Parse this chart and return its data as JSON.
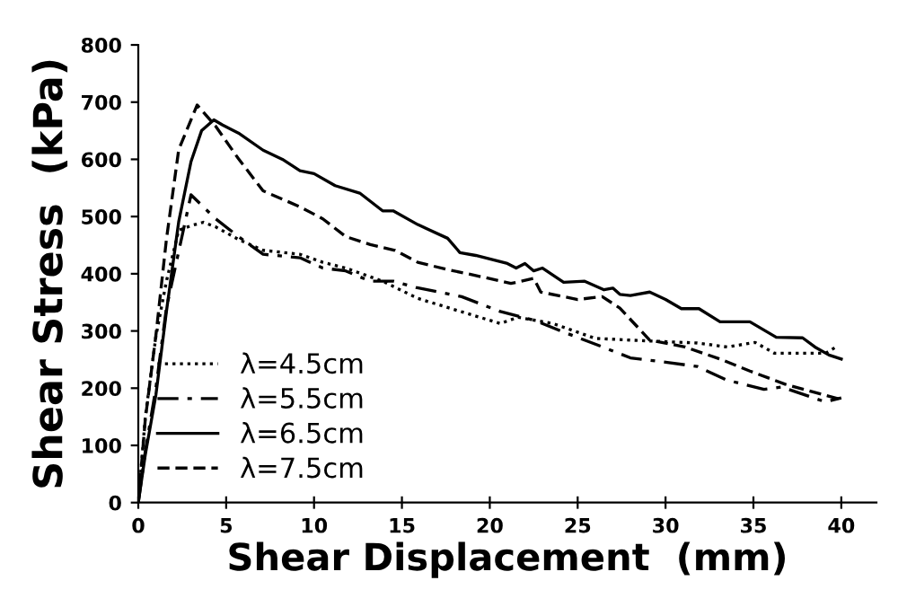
{
  "chart_data": {
    "type": "line",
    "xlabel": "Shear Displacement  (mm)",
    "ylabel": "Shear Stress  (kPa)",
    "xlim": [
      0,
      42
    ],
    "xticks": [
      0,
      5,
      10,
      15,
      20,
      25,
      30,
      35,
      40
    ],
    "ylim": [
      0,
      800
    ],
    "yticks": [
      0,
      100,
      200,
      300,
      400,
      500,
      600,
      700,
      800
    ],
    "grid": false,
    "legend": "lower left",
    "marker": "none",
    "series": [
      {
        "name": "λ=4.5cm",
        "color": "#000000",
        "line_style": "dotted",
        "x": [
          0,
          0.4,
          1,
          1.6,
          2.3,
          3,
          3.7,
          4.4,
          5.7,
          7.1,
          9.2,
          10.5,
          11.8,
          13.9,
          15.9,
          17.6,
          20.6,
          21.6,
          23.6,
          26,
          29.4,
          31.8,
          33.5,
          35.1,
          36.2,
          39.1,
          39.7
        ],
        "values": [
          0,
          150,
          290,
          387,
          476,
          484,
          490,
          482,
          460,
          441,
          434,
          420,
          410,
          387,
          357,
          341,
          313,
          324,
          313,
          287,
          282,
          279,
          272,
          280,
          261,
          261,
          272
        ]
      },
      {
        "name": "λ=5.5cm",
        "color": "#000000",
        "line_style": "dashdot",
        "x": [
          0,
          0.4,
          1,
          1.6,
          2.3,
          3,
          4.4,
          5.7,
          7.1,
          9.2,
          10.5,
          11.8,
          13.2,
          14.5,
          15.8,
          18.4,
          20.6,
          22.5,
          24.2,
          26,
          28,
          30.1,
          31.8,
          33.5,
          35.6,
          36.6,
          39.1,
          40
        ],
        "values": [
          0,
          90,
          200,
          340,
          439,
          538,
          496,
          465,
          434,
          428,
          410,
          405,
          387,
          387,
          376,
          360,
          334,
          319,
          298,
          277,
          253,
          245,
          238,
          214,
          198,
          202,
          176,
          183
        ]
      },
      {
        "name": "λ=6.5cm",
        "color": "#000000",
        "line_style": "solid",
        "x": [
          0,
          0.4,
          1,
          1.6,
          2.3,
          3,
          3.6,
          4.3,
          4.8,
          5.7,
          7.1,
          8.2,
          9.2,
          10,
          11.2,
          12.6,
          13.9,
          14.5,
          15.9,
          17.6,
          18.3,
          19.2,
          20,
          21,
          21.5,
          22,
          22.5,
          23,
          24.2,
          25.4,
          26.5,
          27,
          27.4,
          28,
          29.1,
          30,
          30.9,
          31.9,
          33.1,
          34.8,
          36.3,
          37.8,
          38.5,
          39.3,
          40
        ],
        "values": [
          0,
          84,
          188,
          334,
          491,
          596,
          650,
          669,
          660,
          646,
          616,
          600,
          580,
          575,
          554,
          541,
          510,
          510,
          486,
          462,
          437,
          432,
          426,
          418,
          410,
          418,
          405,
          410,
          385,
          387,
          372,
          375,
          364,
          362,
          368,
          355,
          339,
          339,
          316,
          316,
          289,
          288,
          272,
          258,
          251
        ]
      },
      {
        "name": "λ=7.5cm",
        "color": "#000000",
        "line_style": "dashed",
        "x": [
          0,
          0.4,
          1,
          1.6,
          2.3,
          3.35,
          4.4,
          5.7,
          7.1,
          9.2,
          10.5,
          11.8,
          13.2,
          14.6,
          15.9,
          17.5,
          19.2,
          21.2,
          22.5,
          22.9,
          25,
          26.4,
          27.4,
          29.1,
          31.1,
          33.1,
          34.8,
          36.8,
          40
        ],
        "values": [
          0,
          146,
          292,
          460,
          617,
          695,
          658,
          601,
          545,
          517,
          496,
          465,
          451,
          441,
          420,
          408,
          397,
          383,
          392,
          368,
          355,
          360,
          340,
          284,
          272,
          251,
          230,
          207,
          180
        ]
      }
    ]
  }
}
